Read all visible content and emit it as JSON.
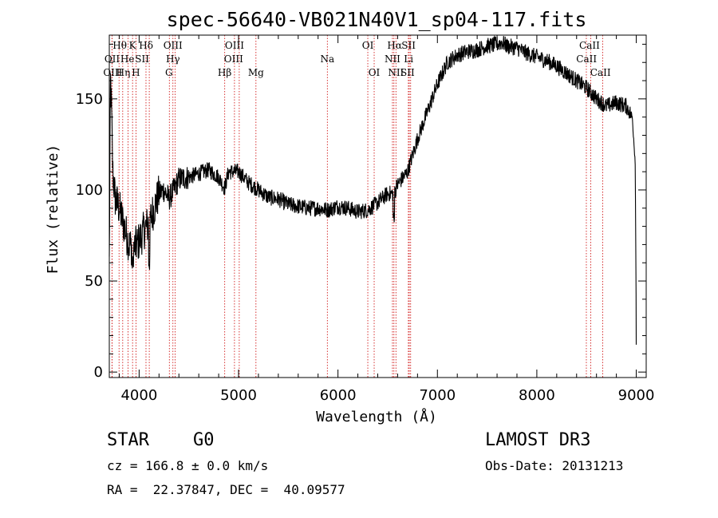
{
  "chart_data": {
    "type": "line",
    "title": "spec-56640-VB021N40V1_sp04-117.fits",
    "xlabel": "Wavelength (Å)",
    "ylabel": "Flux (relative)",
    "xlim": [
      3700,
      9100
    ],
    "ylim": [
      -3,
      185
    ],
    "xticks": [
      {
        "v": 4000,
        "label": "4000"
      },
      {
        "v": 5000,
        "label": "5000"
      },
      {
        "v": 6000,
        "label": "6000"
      },
      {
        "v": 7000,
        "label": "7000"
      },
      {
        "v": 8000,
        "label": "8000"
      },
      {
        "v": 9000,
        "label": "9000"
      }
    ],
    "yticks": [
      {
        "v": 0,
        "label": "0"
      },
      {
        "v": 50,
        "label": "50"
      },
      {
        "v": 100,
        "label": "100"
      },
      {
        "v": 150,
        "label": "150"
      }
    ],
    "spectrum_anchors": [
      [
        3700,
        60
      ],
      [
        3712,
        160
      ],
      [
        3720,
        150
      ],
      [
        3735,
        110
      ],
      [
        3760,
        95
      ],
      [
        3800,
        90
      ],
      [
        3850,
        80
      ],
      [
        3900,
        70
      ],
      [
        3950,
        68
      ],
      [
        4000,
        72
      ],
      [
        4050,
        78
      ],
      [
        4100,
        82
      ],
      [
        4150,
        90
      ],
      [
        4200,
        98
      ],
      [
        4250,
        100
      ],
      [
        4300,
        95
      ],
      [
        4350,
        100
      ],
      [
        4400,
        106
      ],
      [
        4500,
        107
      ],
      [
        4600,
        109
      ],
      [
        4700,
        111
      ],
      [
        4800,
        107
      ],
      [
        4860,
        101
      ],
      [
        4900,
        110
      ],
      [
        5000,
        110
      ],
      [
        5100,
        104
      ],
      [
        5200,
        100
      ],
      [
        5300,
        96
      ],
      [
        5400,
        95
      ],
      [
        5500,
        92
      ],
      [
        5600,
        91
      ],
      [
        5700,
        90
      ],
      [
        5800,
        90
      ],
      [
        5900,
        89
      ],
      [
        6000,
        91
      ],
      [
        6100,
        90
      ],
      [
        6200,
        88
      ],
      [
        6300,
        89
      ],
      [
        6400,
        93
      ],
      [
        6500,
        98
      ],
      [
        6563,
        98
      ],
      [
        6600,
        103
      ],
      [
        6700,
        110
      ],
      [
        6800,
        128
      ],
      [
        6900,
        143
      ],
      [
        7000,
        158
      ],
      [
        7100,
        170
      ],
      [
        7200,
        174
      ],
      [
        7300,
        176
      ],
      [
        7400,
        177
      ],
      [
        7500,
        179
      ],
      [
        7600,
        180
      ],
      [
        7650,
        181
      ],
      [
        7700,
        179
      ],
      [
        7800,
        178
      ],
      [
        7900,
        175
      ],
      [
        8000,
        173
      ],
      [
        8100,
        171
      ],
      [
        8200,
        168
      ],
      [
        8300,
        164
      ],
      [
        8400,
        160
      ],
      [
        8500,
        156
      ],
      [
        8600,
        150
      ],
      [
        8700,
        146
      ],
      [
        8800,
        148
      ],
      [
        8900,
        146
      ],
      [
        8960,
        140
      ],
      [
        8990,
        115
      ],
      [
        9000,
        25
      ]
    ],
    "noise_amplitude": 4.5,
    "spectral_lines": [
      {
        "label": "Hθ",
        "wl": 3798,
        "row": 1,
        "lx": 3805
      },
      {
        "label": "OII",
        "wl": 3727,
        "row": 2,
        "lx": 3728
      },
      {
        "label": "OIII",
        "wl": 3727,
        "row": 3,
        "lx": 3735
      },
      {
        "label": "Hη",
        "wl": 3835,
        "row": 3,
        "lx": 3840
      },
      {
        "label": "K",
        "wl": 3934,
        "row": 1,
        "lx": 3934
      },
      {
        "label": "He",
        "wl": 3889,
        "row": 2,
        "lx": 3882
      },
      {
        "label": "SII",
        "wl": 4069,
        "row": 2,
        "lx": 4030
      },
      {
        "label": "H",
        "wl": 3969,
        "row": 3,
        "lx": 3968
      },
      {
        "label": "Hδ",
        "wl": 4102,
        "row": 1,
        "lx": 4070
      },
      {
        "label": "OIII",
        "wl": 4363,
        "row": 1,
        "lx": 4340
      },
      {
        "label": "Hγ",
        "wl": 4340,
        "row": 2,
        "lx": 4340
      },
      {
        "label": "G",
        "wl": 4304,
        "row": 3,
        "lx": 4300
      },
      {
        "label": "Hβ",
        "wl": 4861,
        "row": 3,
        "lx": 4860
      },
      {
        "label": "OIII",
        "wl": 4959,
        "row": 1,
        "lx": 4959
      },
      {
        "label": "OIII",
        "wl": 5007,
        "row": 2,
        "lx": 4950
      },
      {
        "label": "Mg",
        "wl": 5175,
        "row": 3,
        "lx": 5175
      },
      {
        "label": "Na",
        "wl": 5893,
        "row": 2,
        "lx": 5893
      },
      {
        "label": "OI",
        "wl": 6300,
        "row": 1,
        "lx": 6300
      },
      {
        "label": "OI",
        "wl": 6364,
        "row": 3,
        "lx": 6364
      },
      {
        "label": "Hα",
        "wl": 6563,
        "row": 1,
        "lx": 6570
      },
      {
        "label": "NII",
        "wl": 6548,
        "row": 2,
        "lx": 6548
      },
      {
        "label": "NII",
        "wl": 6583,
        "row": 3,
        "lx": 6583
      },
      {
        "label": "SII",
        "wl": 6717,
        "row": 1,
        "lx": 6710
      },
      {
        "label": "Li",
        "wl": 6708,
        "row": 2,
        "lx": 6710
      },
      {
        "label": "SII",
        "wl": 6731,
        "row": 3,
        "lx": 6700
      },
      {
        "label": "CaII",
        "wl": 8498,
        "row": 1,
        "lx": 8530
      },
      {
        "label": "CaII",
        "wl": 8542,
        "row": 2,
        "lx": 8500
      },
      {
        "label": "CaII",
        "wl": 8662,
        "row": 3,
        "lx": 8640
      }
    ],
    "line_color": "#000000",
    "marker_color": "#cc0000"
  },
  "info": {
    "class_label": "STAR",
    "subclass_label": "G0",
    "survey_label": "LAMOST DR3",
    "cz_text": "cz = 166.8 ± 0.0 km/s",
    "obs_date_text": "Obs-Date: 20131213",
    "radec_text": "RA =  22.37847, DEC =  40.09577"
  }
}
